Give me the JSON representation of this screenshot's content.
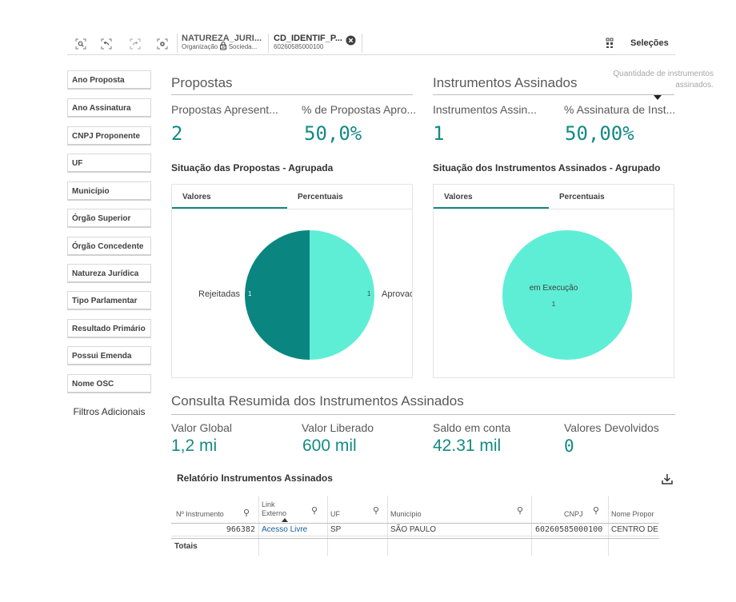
{
  "toolbar": {
    "icons": [
      "smart-search-icon",
      "step-back-icon",
      "step-forward-icon",
      "clear-selections-icon"
    ],
    "chips": [
      {
        "title": "NATUREZA_JURI...",
        "sub": "Organização da Socieda..."
      },
      {
        "title": "CD_IDENTIF_P...",
        "sub": "60260585000100"
      }
    ],
    "selections_label": "Seleções"
  },
  "tooltip": "Quantidade de instrumentos assinados.",
  "filters": [
    "Ano Proposta",
    "Ano Assinatura",
    "CNPJ Proponente",
    "UF",
    "Município",
    "Órgão Superior",
    "Órgão Concedente",
    "Natureza Jurídica",
    "Tipo Parlamentar",
    "Resultado Primário",
    "Possui Emenda",
    "Nome OSC"
  ],
  "filters_more": "Filtros Adicionais",
  "propostas": {
    "title": "Propostas",
    "kpi1_label": "Propostas Apresent...",
    "kpi1_value": "2",
    "kpi2_label": "% de Propostas Apro...",
    "kpi2_value": "50,0%",
    "chart_title": "Situação das Propostas - Agrupada",
    "tab_values": "Valores",
    "tab_percent": "Percentuais",
    "label_left": "Rejeitadas",
    "label_left_value": "1",
    "label_right": "Aprovad",
    "label_right_value": "1"
  },
  "instrumentos": {
    "title": "Instrumentos Assinados",
    "kpi1_label": "Instrumentos Assin...",
    "kpi1_value": "1",
    "kpi2_label": "% Assinatura de Inst...",
    "kpi2_value": "50,00%",
    "chart_title": "Situação dos Instrumentos Assinados - Agrupado",
    "tab_values": "Valores",
    "tab_percent": "Percentuais",
    "center_label": "em Execução",
    "center_value": "1"
  },
  "consulta": {
    "title": "Consulta Resumida dos Instrumentos Assinados",
    "items": [
      {
        "label": "Valor Global",
        "value": "1,2 mi"
      },
      {
        "label": "Valor Liberado",
        "value": "600 mil"
      },
      {
        "label": "Saldo em conta",
        "value": "42.31 mil"
      },
      {
        "label": "Valores Devolvidos",
        "value": "0"
      }
    ]
  },
  "relatorio": {
    "title": "Relatório Instrumentos Assinados",
    "columns": [
      "Nº Instrumento",
      "Link Externo",
      "UF",
      "Município",
      "CNPJ",
      "Nome Propor"
    ],
    "row": [
      "966382",
      "Acesso Livre",
      "SP",
      "SÃO PAULO",
      "60260585000100",
      "CENTRO DE E"
    ],
    "totals": "Totais"
  },
  "colors": {
    "accent": "#138a84",
    "pie_dark": "#0b857f",
    "pie_light": "#5eeed6"
  },
  "chart_data": [
    {
      "type": "pie",
      "title": "Situação das Propostas - Agrupada",
      "categories": [
        "Rejeitadas",
        "Aprovad"
      ],
      "values": [
        1,
        1
      ],
      "colors": [
        "#0b857f",
        "#5eeed6"
      ]
    },
    {
      "type": "pie",
      "title": "Situação dos Instrumentos Assinados - Agrupado",
      "categories": [
        "em Execução"
      ],
      "values": [
        1
      ],
      "colors": [
        "#5eeed6"
      ]
    }
  ]
}
